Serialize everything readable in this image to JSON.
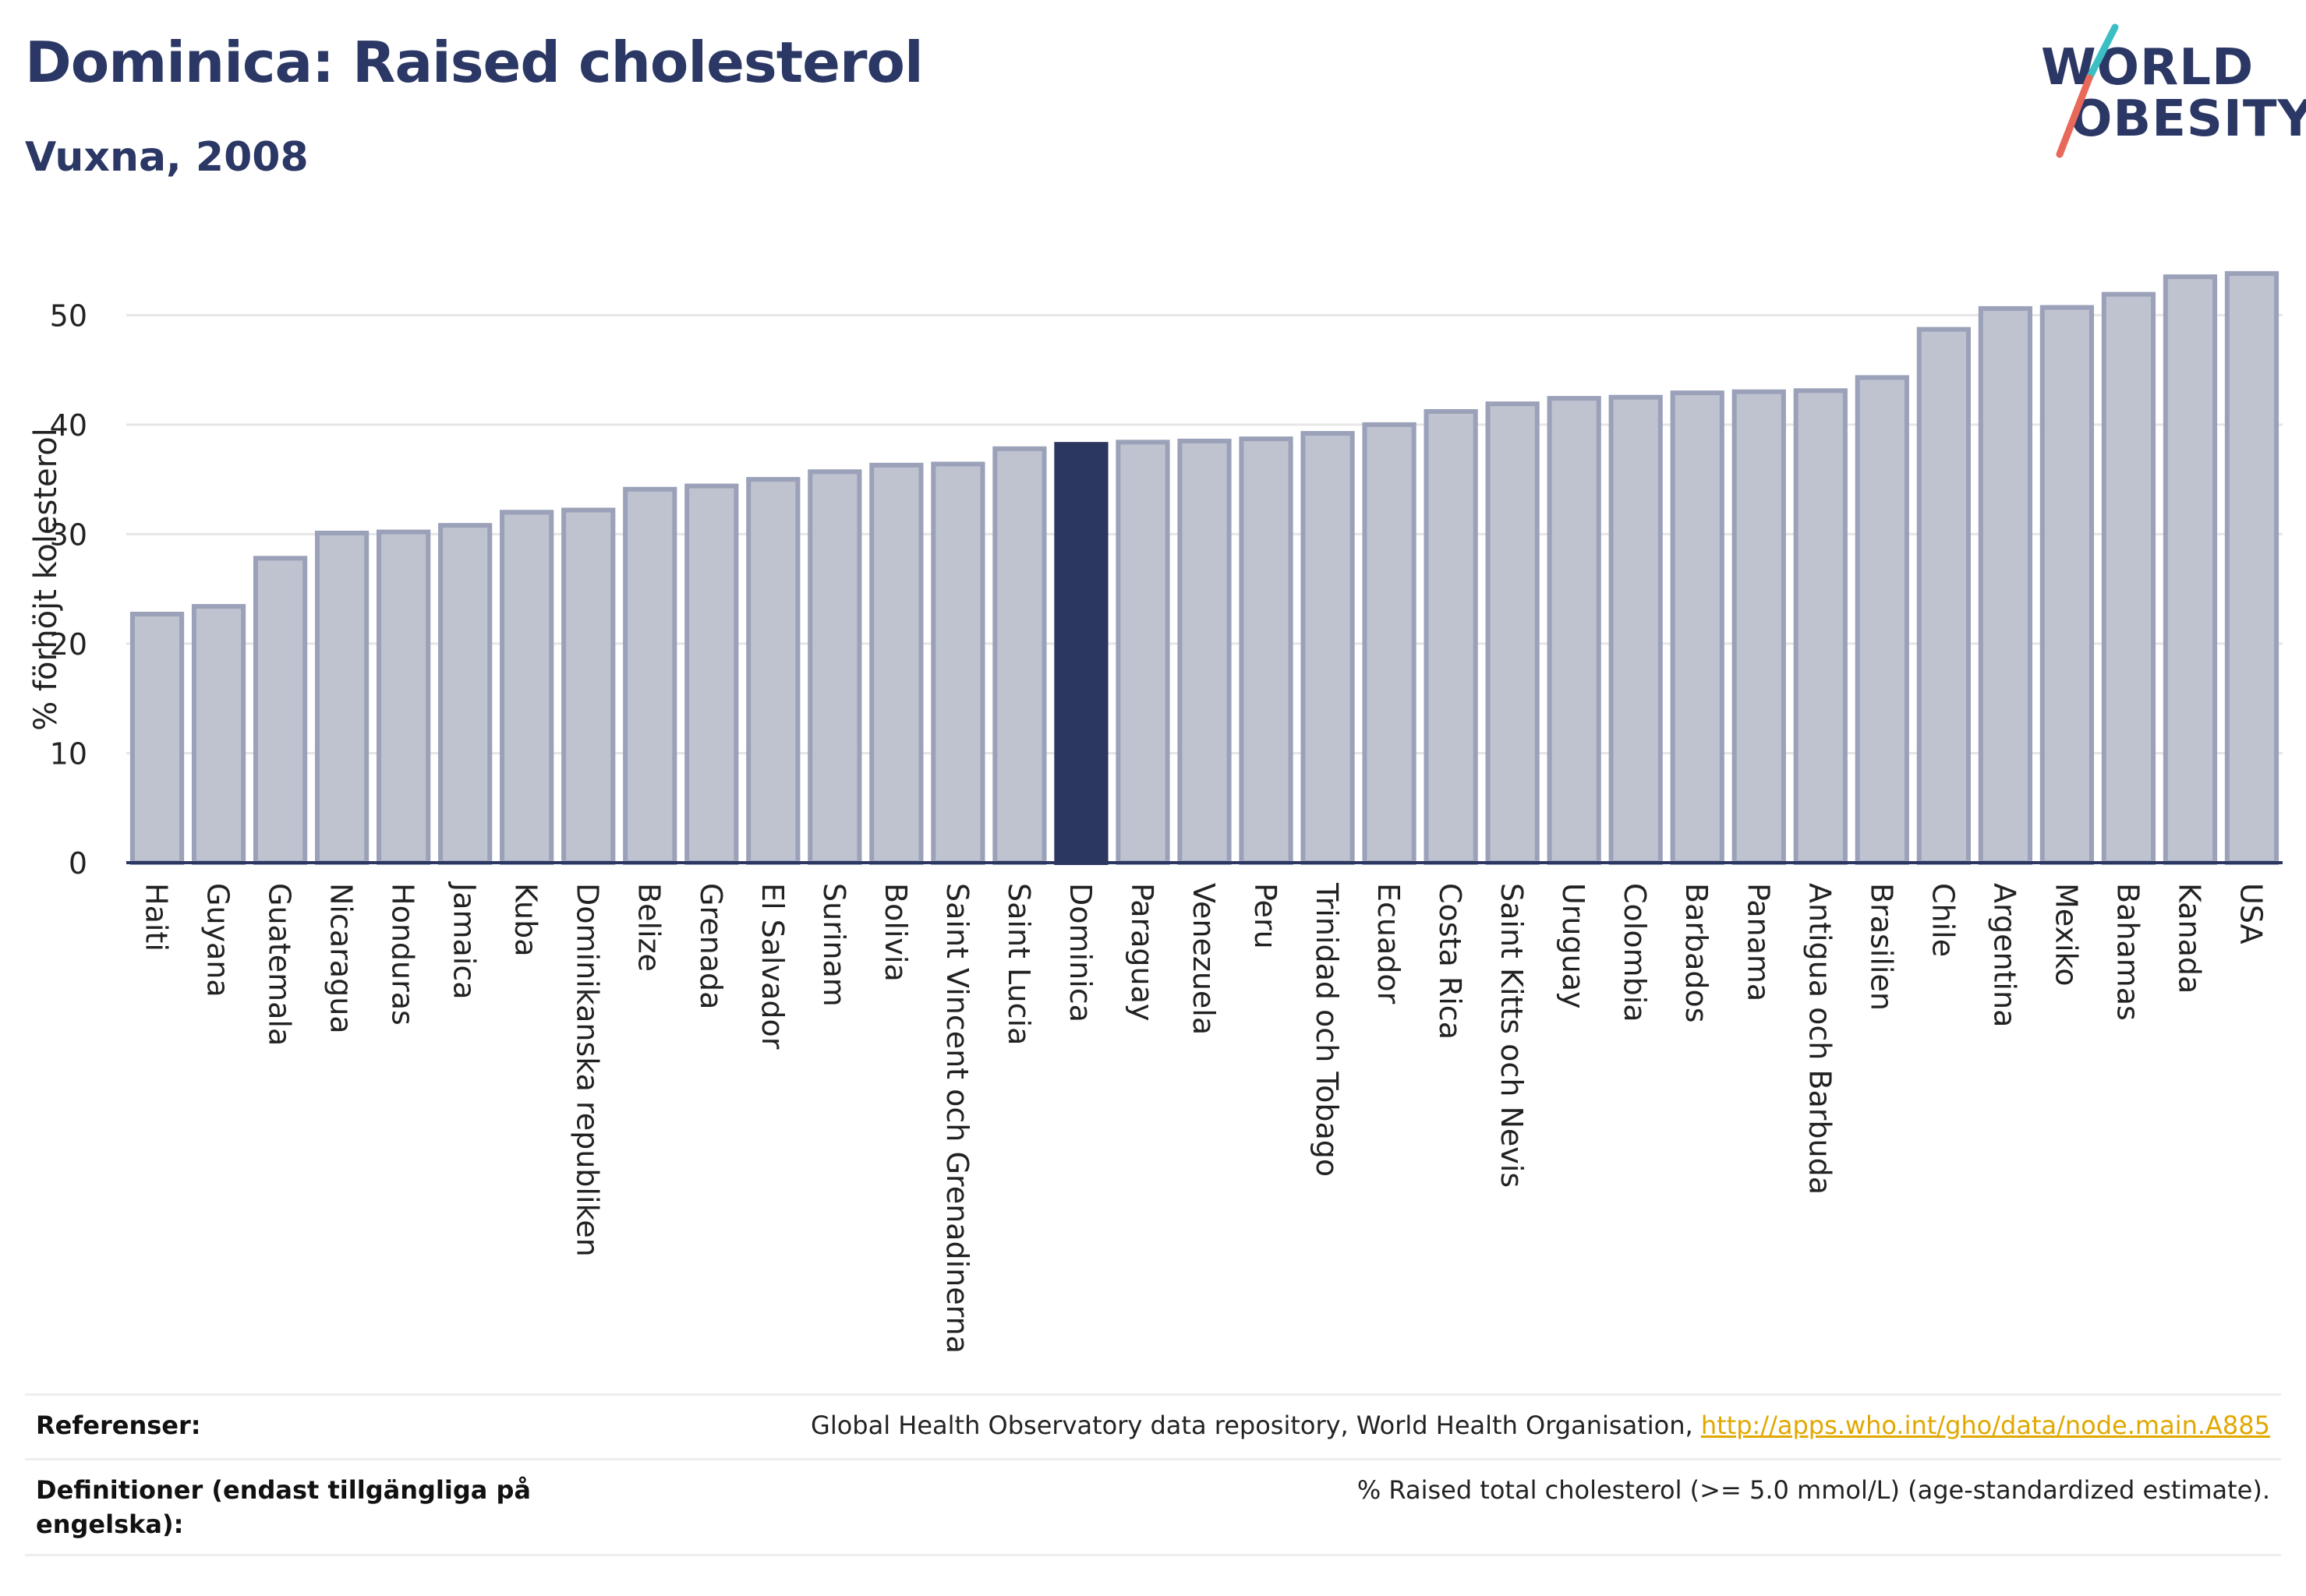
{
  "header": {
    "title": "Dominica: Raised cholesterol",
    "subtitle": "Vuxna, 2008"
  },
  "logo": {
    "line1": "WORLD",
    "line2": "OBESITY",
    "slash_colors": [
      "#3bbfc4",
      "#e8695a"
    ]
  },
  "colors": {
    "bar": "#bfc3d0",
    "bar_border": "#9aa1b8",
    "highlight": "#2b3661",
    "axis": "#2b3661",
    "grid": "#e6e6e6"
  },
  "chart_data": {
    "type": "bar",
    "title": "",
    "xlabel": "",
    "ylabel": "% förhöjt kolesterol",
    "ylim": [
      0,
      56
    ],
    "yticks": [
      0,
      10,
      20,
      30,
      40,
      50
    ],
    "grid": true,
    "highlight": "Dominica",
    "categories": [
      "Haiti",
      "Guyana",
      "Guatemala",
      "Nicaragua",
      "Honduras",
      "Jamaica",
      "Kuba",
      "Dominikanska republiken",
      "Belize",
      "Grenada",
      "El Salvador",
      "Surinam",
      "Bolivia",
      "Saint Vincent och Grenadinerna",
      "Saint Lucia",
      "Dominica",
      "Paraguay",
      "Venezuela",
      "Peru",
      "Trinidad och Tobago",
      "Ecuador",
      "Costa Rica",
      "Saint Kitts och Nevis",
      "Uruguay",
      "Colombia",
      "Barbados",
      "Panama",
      "Antigua och Barbuda",
      "Brasilien",
      "Chile",
      "Argentina",
      "Mexiko",
      "Bahamas",
      "Kanada",
      "USA"
    ],
    "values": [
      22.7,
      23.4,
      27.8,
      30.1,
      30.2,
      30.8,
      32.0,
      32.2,
      34.1,
      34.4,
      35.0,
      35.7,
      36.3,
      36.4,
      37.8,
      38.2,
      38.4,
      38.5,
      38.7,
      39.2,
      40.0,
      41.2,
      41.9,
      42.4,
      42.5,
      42.9,
      43.0,
      43.1,
      44.3,
      48.7,
      50.6,
      50.7,
      51.9,
      53.5,
      53.8
    ]
  },
  "references": {
    "ref_label": "Referenser:",
    "ref_text": "Global Health Observatory data repository, World Health Organisation, ",
    "ref_link": "http://apps.who.int/gho/data/node.main.A885",
    "def_label": "Definitioner (endast tillgängliga på engelska):",
    "def_text": "% Raised total cholesterol (>= 5.0 mmol/L) (age-standardized estimate)."
  }
}
